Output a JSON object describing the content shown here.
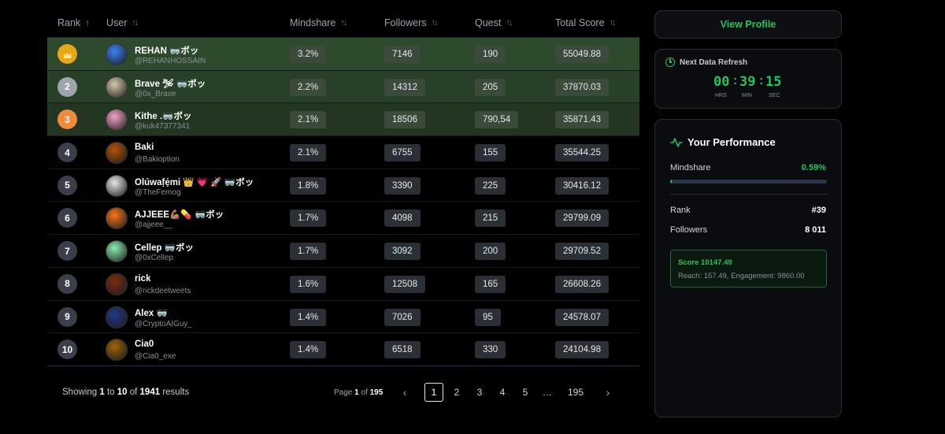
{
  "table": {
    "headers": {
      "rank": "Rank",
      "user": "User",
      "mindshare": "Mindshare",
      "followers": "Followers",
      "quest": "Quest",
      "total_score": "Total Score"
    },
    "rows": [
      {
        "rank": "1",
        "name": "REHAN 🥽ボッ",
        "handle": "@REHANHOSSAIN",
        "mindshare": "3.2%",
        "followers": "7146",
        "quest": "190",
        "total_score": "55049.88",
        "avatar_color": "#3b82f6"
      },
      {
        "rank": "2",
        "name": "Brave 🛩 🥽ボッ",
        "handle": "@0x_Brave",
        "mindshare": "2.2%",
        "followers": "14312",
        "quest": "205",
        "total_score": "37870.03",
        "avatar_color": "#d6c9a8"
      },
      {
        "rank": "3",
        "name": "Kithe .🥽ボッ",
        "handle": "@kuk47377341",
        "mindshare": "2.1%",
        "followers": "18506",
        "quest": "790,54",
        "total_score": "35871.43",
        "avatar_color": "#f5a3c7"
      },
      {
        "rank": "4",
        "name": "Baki",
        "handle": "@Bakioption",
        "mindshare": "2.1%",
        "followers": "6755",
        "quest": "155",
        "total_score": "35544.25",
        "avatar_color": "#b45309"
      },
      {
        "rank": "5",
        "name": "Olúwaf̣ẹ́mi 👑 💗 🚀 🥽ボッ",
        "handle": "@TheFemog",
        "mindshare": "1.8%",
        "followers": "3390",
        "quest": "225",
        "total_score": "30416.12",
        "avatar_color": "#e5e7eb"
      },
      {
        "rank": "6",
        "name": "AJJEEE💪🏽💊 🥽ボッ",
        "handle": "@ajjeee__",
        "mindshare": "1.7%",
        "followers": "4098",
        "quest": "215",
        "total_score": "29799.09",
        "avatar_color": "#f97316"
      },
      {
        "rank": "7",
        "name": "Cellep 🥽ボッ",
        "handle": "@0xCellep",
        "mindshare": "1.7%",
        "followers": "3092",
        "quest": "200",
        "total_score": "29709.52",
        "avatar_color": "#86efac"
      },
      {
        "rank": "8",
        "name": "rick",
        "handle": "@rickdeetweets",
        "mindshare": "1.6%",
        "followers": "12508",
        "quest": "165",
        "total_score": "26608.26",
        "avatar_color": "#7c2d12"
      },
      {
        "rank": "9",
        "name": "Alex 🥽",
        "handle": "@CryptoAIGuy_",
        "mindshare": "1.4%",
        "followers": "7026",
        "quest": "95",
        "total_score": "24578.07",
        "avatar_color": "#1e3a8a"
      },
      {
        "rank": "10",
        "name": "Cia0",
        "handle": "@Cia0_exe",
        "mindshare": "1.4%",
        "followers": "6518",
        "quest": "330",
        "total_score": "24104.98",
        "avatar_color": "#a16207"
      }
    ]
  },
  "pagination": {
    "showing_prefix": "Showing",
    "from": "1",
    "to_word": "to",
    "to": "10",
    "of_word": "of",
    "total": "1941",
    "results_word": "results",
    "page_word": "Page",
    "current_page": "1",
    "total_pages": "195",
    "pages": [
      "1",
      "2",
      "3",
      "4",
      "5",
      "…",
      "195"
    ],
    "prev_icon": "chevron-left-icon",
    "next_icon": "chevron-right-icon"
  },
  "sidebar": {
    "view_profile": "View Profile",
    "refresh": {
      "title": "Next Data Refresh",
      "hours": "00",
      "minutes": "39",
      "seconds": "15",
      "hrs_label": "HRS",
      "min_label": "MIN",
      "sec_label": "SEC"
    },
    "performance": {
      "title": "Your Performance",
      "mindshare_label": "Mindshare",
      "mindshare_value": "0.59%",
      "mindshare_fraction": 0.0059,
      "rank_label": "Rank",
      "rank_value": "#39",
      "followers_label": "Followers",
      "followers_value": "8 011",
      "score_label": "Score",
      "score_value": "10147.49",
      "reach_line": "Reach: 157.49, Engagement: 9860.00"
    }
  },
  "colors": {
    "accent": "#22c55e",
    "gold": "#e6a817",
    "silver": "#a0a4ad",
    "bronze": "#f08a3c"
  }
}
